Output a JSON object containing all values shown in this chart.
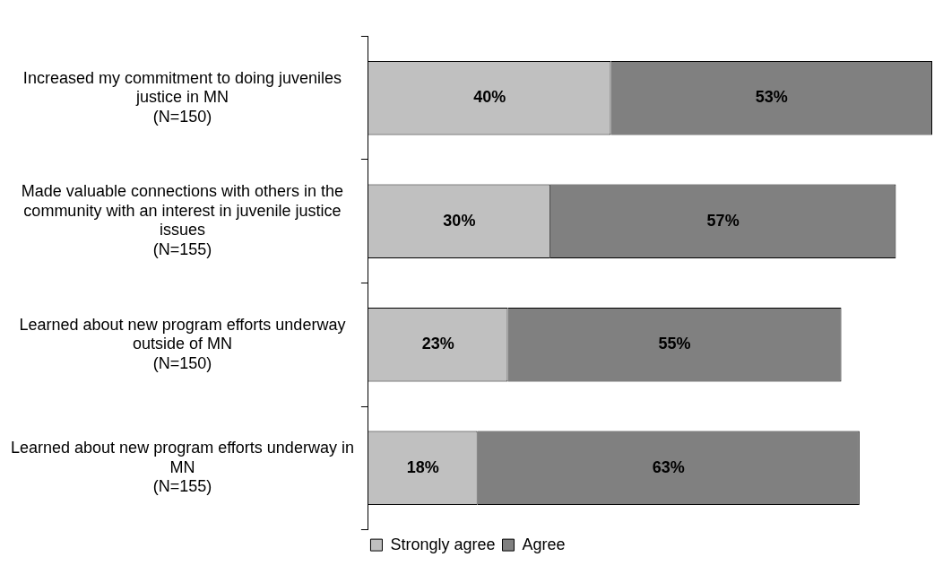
{
  "chart_data": {
    "type": "bar",
    "orientation": "horizontal",
    "stacked": true,
    "legend": "bottom",
    "categories": [
      "Increased my commitment to doing juveniles\njustice in MN\n(N=150)",
      "Made valuable connections with others in the\ncommunity with an interest in juvenile justice\nissues\n(N=155)",
      "Learned about new program efforts underway\noutside of MN\n(N=150)",
      "Learned about new program efforts underway in\nMN\n(N=155)"
    ],
    "series": [
      {
        "name": "Strongly agree",
        "color": "#c0c0c0",
        "values": [
          40,
          30,
          23,
          18
        ],
        "value_labels": [
          "40%",
          "30%",
          "23%",
          "18%"
        ]
      },
      {
        "name": "Agree",
        "color": "#808080",
        "values": [
          53,
          57,
          55,
          63
        ],
        "value_labels": [
          "53%",
          "57%",
          "55%",
          "63%"
        ]
      }
    ]
  }
}
